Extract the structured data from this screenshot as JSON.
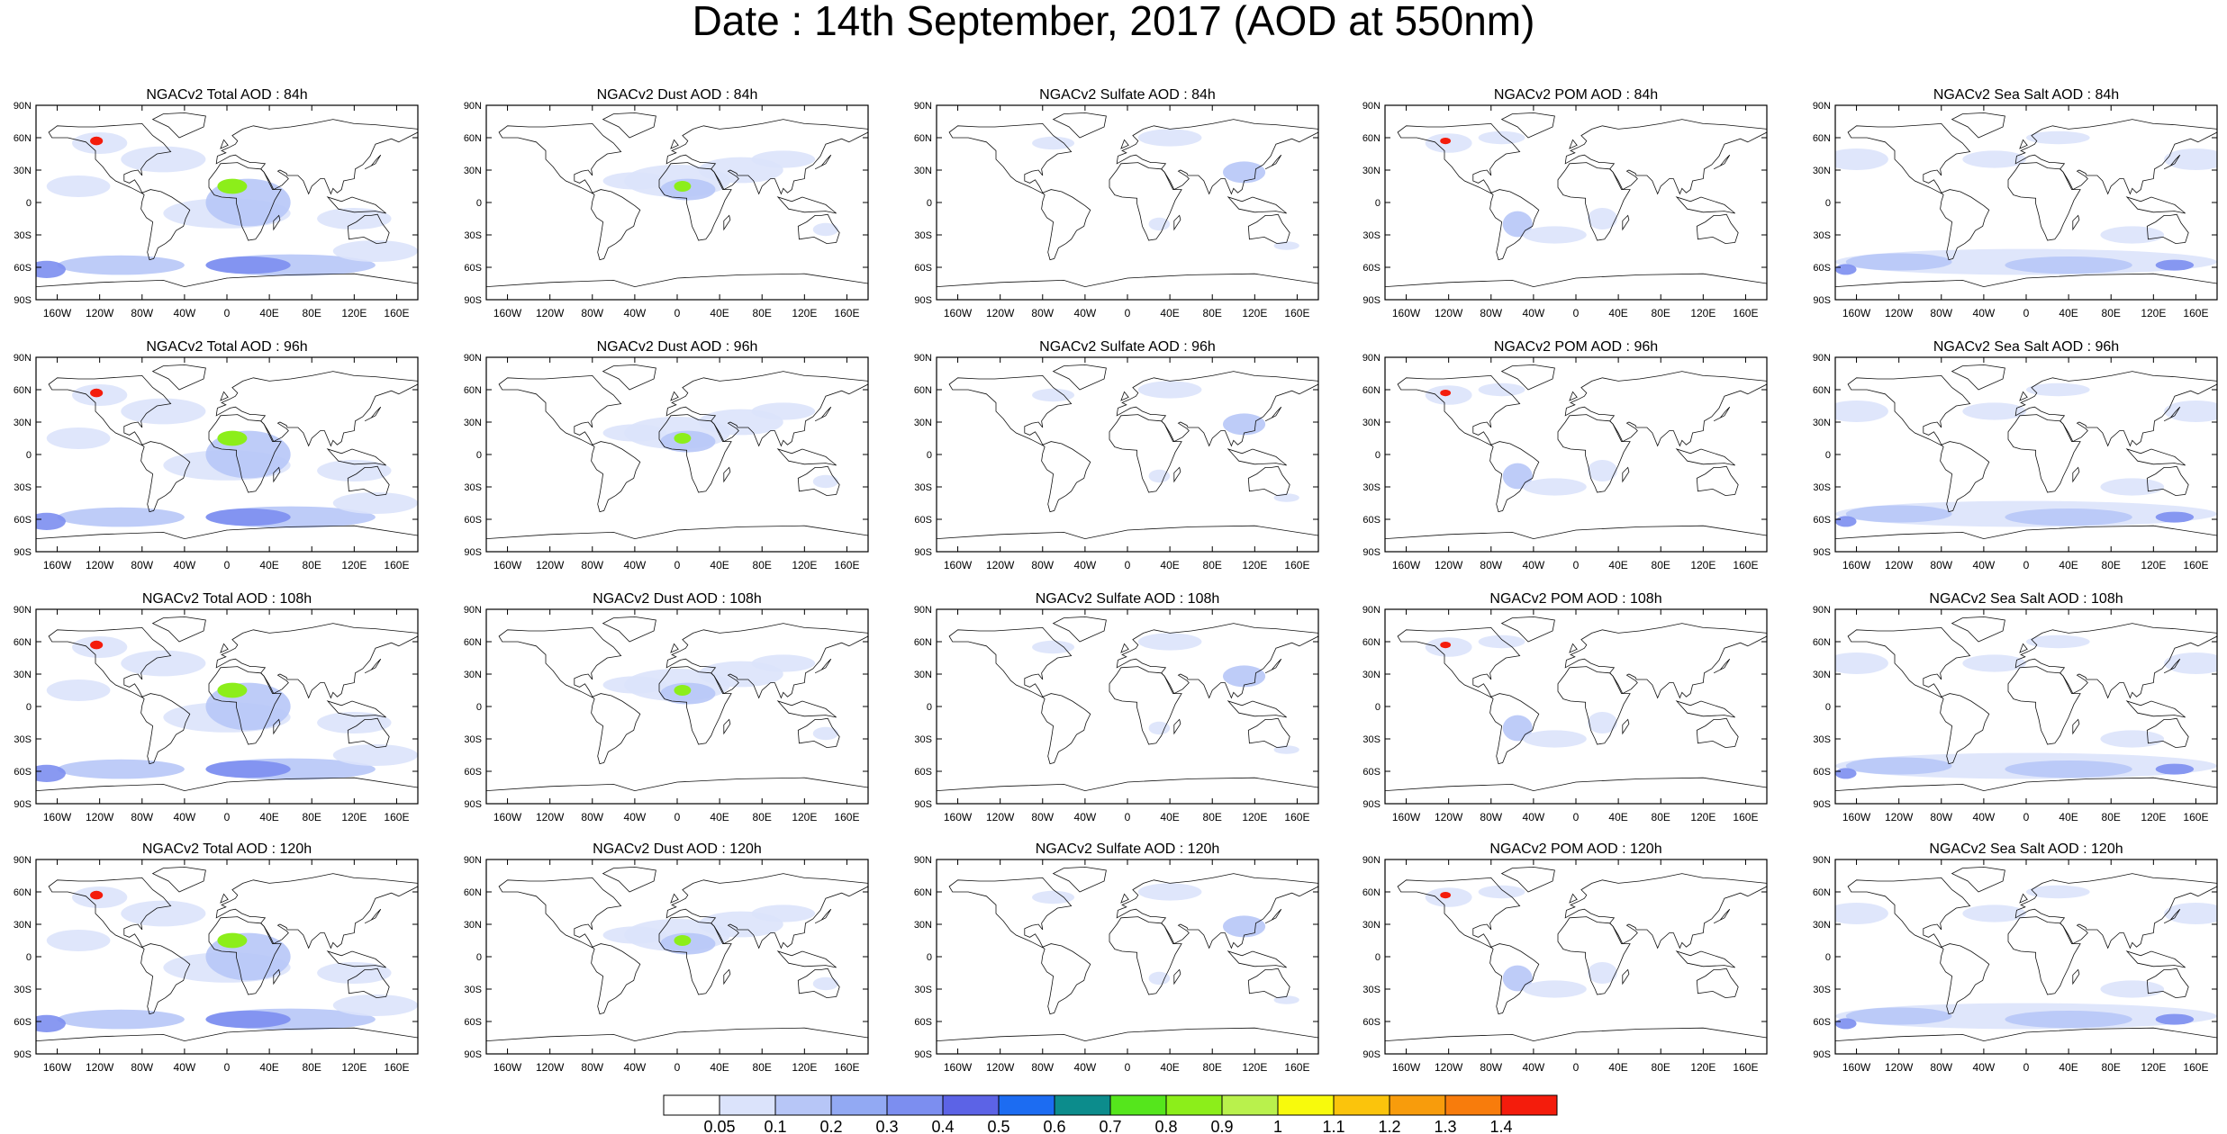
{
  "title": "Date : 14th September, 2017 (AOD at 550nm)",
  "panel_titles": [
    [
      "NGACv2 Total AOD : 84h",
      "NGACv2 Dust AOD : 84h",
      "NGACv2 Sulfate AOD : 84h",
      "NGACv2 POM AOD : 84h",
      "NGACv2 Sea Salt AOD : 84h"
    ],
    [
      "NGACv2 Total AOD : 96h",
      "NGACv2 Dust AOD : 96h",
      "NGACv2 Sulfate AOD : 96h",
      "NGACv2 POM AOD : 96h",
      "NGACv2 Sea Salt AOD : 96h"
    ],
    [
      "NGACv2 Total AOD : 108h",
      "NGACv2 Dust AOD : 108h",
      "NGACv2 Sulfate AOD : 108h",
      "NGACv2 POM AOD : 108h",
      "NGACv2 Sea Salt AOD : 108h"
    ],
    [
      "NGACv2 Total AOD : 120h",
      "NGACv2 Dust AOD : 120h",
      "NGACv2 Sulfate AOD : 120h",
      "NGACv2 POM AOD : 120h",
      "NGACv2 Sea Salt  AOD : 120h"
    ]
  ],
  "lat_labels": [
    "90N",
    "60N",
    "30N",
    "0",
    "30S",
    "60S",
    "90S"
  ],
  "lon_labels": [
    "160W",
    "120W",
    "80W",
    "40W",
    "0",
    "40E",
    "80E",
    "120E",
    "160E"
  ],
  "colorbar": {
    "labels": [
      "0.05",
      "0.1",
      "0.2",
      "0.3",
      "0.4",
      "0.5",
      "0.6",
      "0.7",
      "0.8",
      "0.9",
      "1",
      "1.1",
      "1.2",
      "1.3",
      "1.4"
    ],
    "colors": [
      "#ffffff",
      "#dbe3fb",
      "#b7c6f7",
      "#92a9f3",
      "#7c8ef0",
      "#5c63e6",
      "#1c6cf2",
      "#0c8c8c",
      "#55e61c",
      "#8cee1a",
      "#b9f14c",
      "#f8fa0c",
      "#fbc40c",
      "#f89c0c",
      "#f87c0c",
      "#f41c0c"
    ]
  },
  "map_colors": {
    "ocean_dominant": "#ffffff",
    "light_aod": "#dbe3fb",
    "medium_aod": "#b7c6f7",
    "strong_aod": "#7c8ef0",
    "hotspot_fire": "#f41c0c",
    "hotspot_dust": "#8cee1a"
  }
}
